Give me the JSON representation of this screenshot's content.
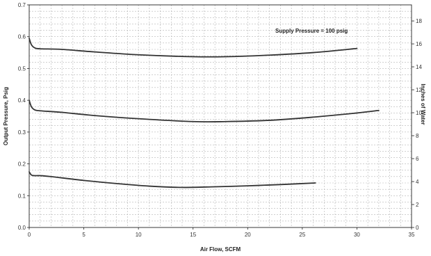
{
  "chart_data": {
    "type": "line",
    "title": "",
    "xlabel": "Air Flow, SCFM",
    "ylabel": "Output Pressure, Psig",
    "y2label": "Inches of Water",
    "xlim": [
      0,
      35
    ],
    "ylim": [
      0,
      0.7
    ],
    "y2lim": [
      0,
      19.4
    ],
    "x_ticks": [
      "0",
      "5",
      "10",
      "15",
      "20",
      "25",
      "30",
      "35"
    ],
    "y_ticks": [
      "0.0",
      "0.1",
      "0.2",
      "0.3",
      "0.4",
      "0.5",
      "0.6",
      "0.7"
    ],
    "y2_ticks": [
      "0",
      "2",
      "4",
      "6",
      "8",
      "10",
      "12",
      "14",
      "16",
      "18"
    ],
    "grid": true,
    "annotation": "Supply Pressure = 100 psig",
    "series": [
      {
        "x": [
          0,
          0.2,
          0.5,
          1,
          3,
          6,
          10,
          15,
          18,
          22,
          26,
          30
        ],
        "values": [
          0.595,
          0.575,
          0.565,
          0.562,
          0.56,
          0.552,
          0.543,
          0.537,
          0.537,
          0.542,
          0.55,
          0.563
        ]
      },
      {
        "x": [
          0,
          0.2,
          0.5,
          1,
          3,
          6,
          10,
          15,
          18,
          22,
          26,
          30,
          32
        ],
        "values": [
          0.4,
          0.38,
          0.37,
          0.367,
          0.362,
          0.352,
          0.342,
          0.333,
          0.333,
          0.337,
          0.347,
          0.36,
          0.368
        ]
      },
      {
        "x": [
          0,
          0.2,
          0.5,
          1,
          2,
          5,
          8,
          11,
          14,
          17,
          20,
          23,
          26.2
        ],
        "values": [
          0.175,
          0.165,
          0.163,
          0.163,
          0.16,
          0.148,
          0.138,
          0.13,
          0.126,
          0.128,
          0.131,
          0.135,
          0.14
        ]
      }
    ]
  },
  "style": {
    "line_color": "#333333",
    "grid_color": "#b4b4b4",
    "axis_color": "#222222",
    "background": "#ffffff"
  }
}
